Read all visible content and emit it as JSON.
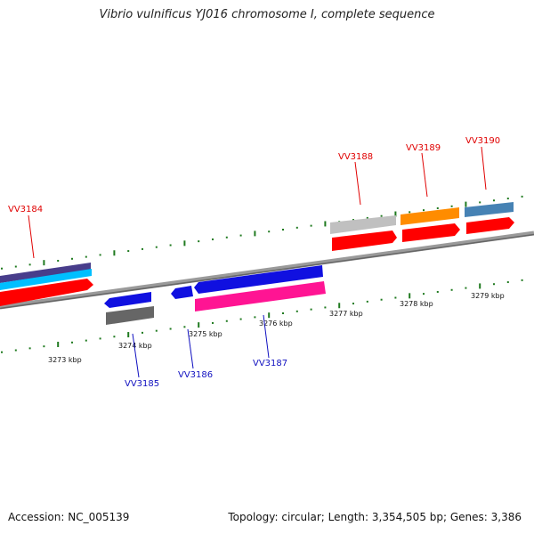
{
  "title": "Vibrio vulnificus YJ016 chromosome I, complete sequence",
  "footer": {
    "accession": "Accession: NC_005139",
    "stats": "Topology: circular; Length: 3,354,505 bp; Genes: 3,386"
  },
  "colors": {
    "backbone": "#8c8c8c",
    "tick": "#1f7a1f",
    "label_top": "#e00000",
    "label_bottom": "#1010c0"
  },
  "scale": {
    "unit": "kbp",
    "tick_labels": [
      "3273 kbp",
      "3274 kbp",
      "3275 kbp",
      "3276 kbp",
      "3277 kbp",
      "3278 kbp",
      "3279 kbp"
    ]
  },
  "genes": [
    {
      "name": "VV3184",
      "strand": "+",
      "color": "#ff0000"
    },
    {
      "name": "VV3185",
      "strand": "-",
      "color": "#1010e0"
    },
    {
      "name": "VV3186",
      "strand": "-",
      "color": "#1010e0"
    },
    {
      "name": "VV3187",
      "strand": "+",
      "color": "#ff1493"
    },
    {
      "name": "VV3188",
      "strand": "+",
      "color": "#ff0000"
    },
    {
      "name": "VV3189",
      "strand": "+",
      "color": "#ff0000"
    },
    {
      "name": "VV3190",
      "strand": "+",
      "color": "#ff0000"
    }
  ]
}
